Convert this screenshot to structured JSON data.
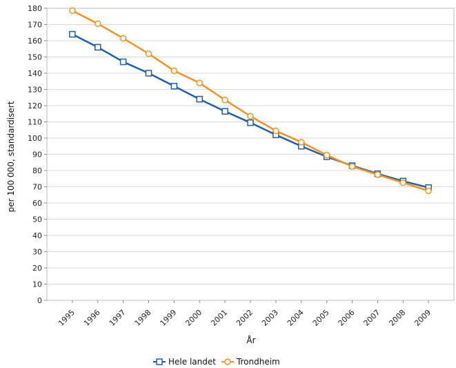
{
  "chart_data": {
    "type": "line",
    "title": "",
    "xlabel": "År",
    "ylabel": "per 100 000, standardisert",
    "ylim": [
      0,
      180
    ],
    "ytick_step": 10,
    "grid": true,
    "legend_position": "bottom",
    "x": [
      "1995",
      "1996",
      "1997",
      "1998",
      "1999",
      "2000",
      "2001",
      "2002",
      "2003",
      "2004",
      "2005",
      "2006",
      "2007",
      "2008",
      "2009"
    ],
    "series": [
      {
        "name": "Hele landet",
        "color": "#1f5fa5",
        "marker": "square",
        "values": [
          164,
          156,
          147,
          140,
          132,
          124,
          116.5,
          109.5,
          102,
          95,
          88.5,
          83,
          78,
          73.5,
          69.5
        ]
      },
      {
        "name": "Trondheim",
        "color": "#f5921e",
        "marker": "circle",
        "values": [
          178.5,
          170.5,
          161.5,
          152,
          141.5,
          134,
          123.5,
          113.5,
          104.5,
          97.5,
          89.5,
          82.5,
          77.5,
          72.5,
          67.5
        ]
      }
    ]
  }
}
